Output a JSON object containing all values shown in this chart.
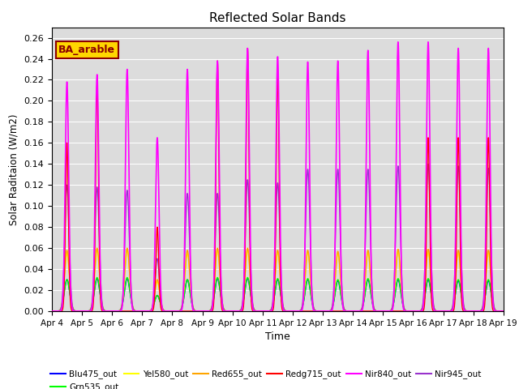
{
  "title": "Reflected Solar Bands",
  "xlabel": "Time",
  "ylabel": "Solar Raditaion (W/m2)",
  "annotation_text": "BA_arable",
  "annotation_color": "#8B0000",
  "annotation_bg": "#FFD700",
  "ylim": [
    0.0,
    0.27
  ],
  "yticks": [
    0.0,
    0.02,
    0.04,
    0.06,
    0.08,
    0.1,
    0.12,
    0.14,
    0.16,
    0.18,
    0.2,
    0.22,
    0.24,
    0.26
  ],
  "xtick_labels": [
    "Apr 4",
    "Apr 5",
    "Apr 6",
    "Apr 7",
    "Apr 8",
    "Apr 9",
    "Apr 10",
    "Apr 11",
    "Apr 12",
    "Apr 13",
    "Apr 14",
    "Apr 15",
    "Apr 16",
    "Apr 17",
    "Apr 18",
    "Apr 19"
  ],
  "series": {
    "Blu475_out": {
      "color": "#0000FF",
      "lw": 1.0
    },
    "Grn535_out": {
      "color": "#00FF00",
      "lw": 1.0
    },
    "Yel580_out": {
      "color": "#FFFF00",
      "lw": 1.0
    },
    "Red655_out": {
      "color": "#FFA500",
      "lw": 1.0
    },
    "Redg715_out": {
      "color": "#FF0000",
      "lw": 1.0
    },
    "Nir840_out": {
      "color": "#FF00FF",
      "lw": 1.2
    },
    "Nir945_out": {
      "color": "#9933CC",
      "lw": 1.0
    }
  },
  "bg_color": "#DCDCDC",
  "grid_color": "#FFFFFF",
  "day_peaks_nir840": [
    0.218,
    0.225,
    0.23,
    0.165,
    0.23,
    0.238,
    0.25,
    0.242,
    0.237,
    0.238,
    0.248,
    0.256,
    0.256,
    0.25,
    0.25
  ],
  "day_peaks_redg715": [
    0.16,
    0.215,
    0.0,
    0.08,
    0.0,
    0.238,
    0.25,
    0.224,
    0.0,
    0.0,
    0.0,
    0.0,
    0.165,
    0.165,
    0.165
  ],
  "day_peaks_nir945": [
    0.12,
    0.118,
    0.115,
    0.05,
    0.112,
    0.112,
    0.125,
    0.122,
    0.135,
    0.135,
    0.135,
    0.138,
    0.14,
    0.138,
    0.136
  ],
  "day_peaks_red655": [
    0.058,
    0.06,
    0.06,
    0.03,
    0.058,
    0.06,
    0.06,
    0.058,
    0.058,
    0.057,
    0.058,
    0.059,
    0.059,
    0.058,
    0.058
  ],
  "day_peaks_yel580": [
    0.055,
    0.058,
    0.058,
    0.028,
    0.055,
    0.058,
    0.058,
    0.056,
    0.056,
    0.055,
    0.056,
    0.057,
    0.057,
    0.056,
    0.056
  ],
  "day_peaks_grn535": [
    0.03,
    0.032,
    0.032,
    0.015,
    0.03,
    0.032,
    0.032,
    0.031,
    0.031,
    0.03,
    0.031,
    0.031,
    0.031,
    0.03,
    0.03
  ],
  "day_peaks_blu475": [
    0.03,
    0.031,
    0.031,
    0.015,
    0.03,
    0.031,
    0.031,
    0.03,
    0.03,
    0.029,
    0.03,
    0.03,
    0.03,
    0.029,
    0.029
  ]
}
